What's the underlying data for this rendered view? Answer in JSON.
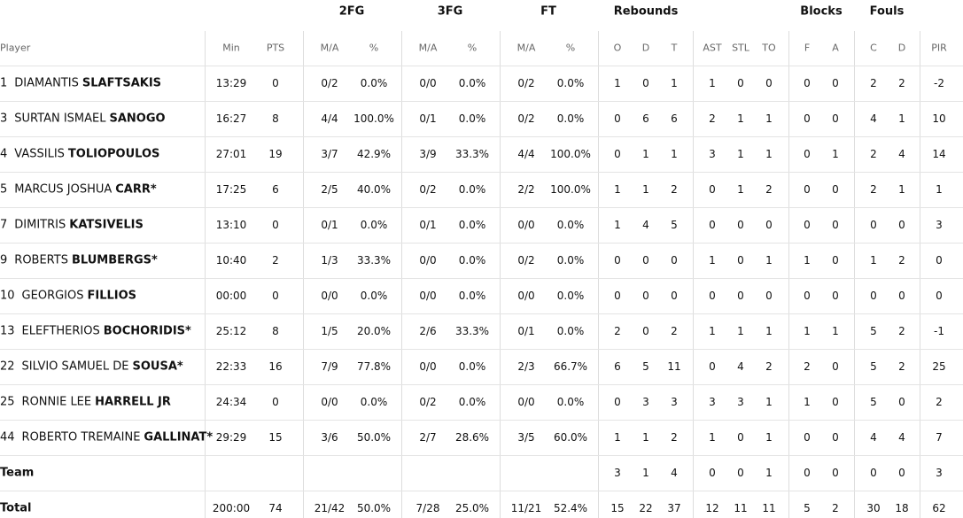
{
  "groups": [
    "2FG",
    "3FG",
    "FT",
    "Rebounds",
    "Blocks",
    "Fouls"
  ],
  "columns": [
    "Player",
    "Min",
    "PTS",
    "M/A",
    "%",
    "M/A",
    "%",
    "M/A",
    "%",
    "O",
    "D",
    "T",
    "AST",
    "STL",
    "TO",
    "F",
    "A",
    "C",
    "D",
    "PIR"
  ],
  "players": [
    {
      "no": "1",
      "first": "DIAMANTIS",
      "last": "SLAFTSAKIS",
      "stats": [
        "13:29",
        "0",
        "0/2",
        "0.0%",
        "0/0",
        "0.0%",
        "0/2",
        "0.0%",
        "1",
        "0",
        "1",
        "1",
        "0",
        "0",
        "0",
        "0",
        "2",
        "2",
        "-2"
      ]
    },
    {
      "no": "3",
      "first": "SURTAN ISMAEL",
      "last": "SANOGO",
      "stats": [
        "16:27",
        "8",
        "4/4",
        "100.0%",
        "0/1",
        "0.0%",
        "0/2",
        "0.0%",
        "0",
        "6",
        "6",
        "2",
        "1",
        "1",
        "0",
        "0",
        "4",
        "1",
        "10"
      ]
    },
    {
      "no": "4",
      "first": "VASSILIS",
      "last": "TOLIOPOULOS",
      "stats": [
        "27:01",
        "19",
        "3/7",
        "42.9%",
        "3/9",
        "33.3%",
        "4/4",
        "100.0%",
        "0",
        "1",
        "1",
        "3",
        "1",
        "1",
        "0",
        "1",
        "2",
        "4",
        "14"
      ]
    },
    {
      "no": "5",
      "first": "MARCUS JOSHUA",
      "last": "CARR*",
      "stats": [
        "17:25",
        "6",
        "2/5",
        "40.0%",
        "0/2",
        "0.0%",
        "2/2",
        "100.0%",
        "1",
        "1",
        "2",
        "0",
        "1",
        "2",
        "0",
        "0",
        "2",
        "1",
        "1"
      ]
    },
    {
      "no": "7",
      "first": "DIMITRIS",
      "last": "KATSIVELIS",
      "stats": [
        "13:10",
        "0",
        "0/1",
        "0.0%",
        "0/1",
        "0.0%",
        "0/0",
        "0.0%",
        "1",
        "4",
        "5",
        "0",
        "0",
        "0",
        "0",
        "0",
        "0",
        "0",
        "3"
      ]
    },
    {
      "no": "9",
      "first": "ROBERTS",
      "last": "BLUMBERGS*",
      "stats": [
        "10:40",
        "2",
        "1/3",
        "33.3%",
        "0/0",
        "0.0%",
        "0/2",
        "0.0%",
        "0",
        "0",
        "0",
        "1",
        "0",
        "1",
        "1",
        "0",
        "1",
        "2",
        "0"
      ]
    },
    {
      "no": "10",
      "first": "GEORGIOS",
      "last": "FILLIOS",
      "stats": [
        "00:00",
        "0",
        "0/0",
        "0.0%",
        "0/0",
        "0.0%",
        "0/0",
        "0.0%",
        "0",
        "0",
        "0",
        "0",
        "0",
        "0",
        "0",
        "0",
        "0",
        "0",
        "0"
      ]
    },
    {
      "no": "13",
      "first": "ELEFTHERIOS",
      "last": "BOCHORIDIS*",
      "stats": [
        "25:12",
        "8",
        "1/5",
        "20.0%",
        "2/6",
        "33.3%",
        "0/1",
        "0.0%",
        "2",
        "0",
        "2",
        "1",
        "1",
        "1",
        "1",
        "1",
        "5",
        "2",
        "-1"
      ]
    },
    {
      "no": "22",
      "first": "SILVIO SAMUEL DE",
      "last": "SOUSA*",
      "stats": [
        "22:33",
        "16",
        "7/9",
        "77.8%",
        "0/0",
        "0.0%",
        "2/3",
        "66.7%",
        "6",
        "5",
        "11",
        "0",
        "4",
        "2",
        "2",
        "0",
        "5",
        "2",
        "25"
      ]
    },
    {
      "no": "25",
      "first": "RONNIE LEE",
      "last": "HARRELL JR",
      "stats": [
        "24:34",
        "0",
        "0/0",
        "0.0%",
        "0/2",
        "0.0%",
        "0/0",
        "0.0%",
        "0",
        "3",
        "3",
        "3",
        "3",
        "1",
        "1",
        "0",
        "5",
        "0",
        "2"
      ]
    },
    {
      "no": "44",
      "first": "ROBERTO TREMAINE",
      "last": "GALLINAT*",
      "stats": [
        "29:29",
        "15",
        "3/6",
        "50.0%",
        "2/7",
        "28.6%",
        "3/5",
        "60.0%",
        "1",
        "1",
        "2",
        "1",
        "0",
        "1",
        "0",
        "0",
        "4",
        "4",
        "7"
      ]
    }
  ],
  "team": {
    "label": "Team",
    "stats": [
      null,
      null,
      null,
      null,
      null,
      null,
      null,
      null,
      "3",
      "1",
      "4",
      "0",
      "0",
      "1",
      "0",
      "0",
      "0",
      "0",
      "3"
    ]
  },
  "total": {
    "label": "Total",
    "stats": [
      "200:00",
      "74",
      "21/42",
      "50.0%",
      "7/28",
      "25.0%",
      "11/21",
      "52.4%",
      "15",
      "22",
      "37",
      "12",
      "11",
      "11",
      "5",
      "2",
      "30",
      "18",
      "62"
    ]
  }
}
